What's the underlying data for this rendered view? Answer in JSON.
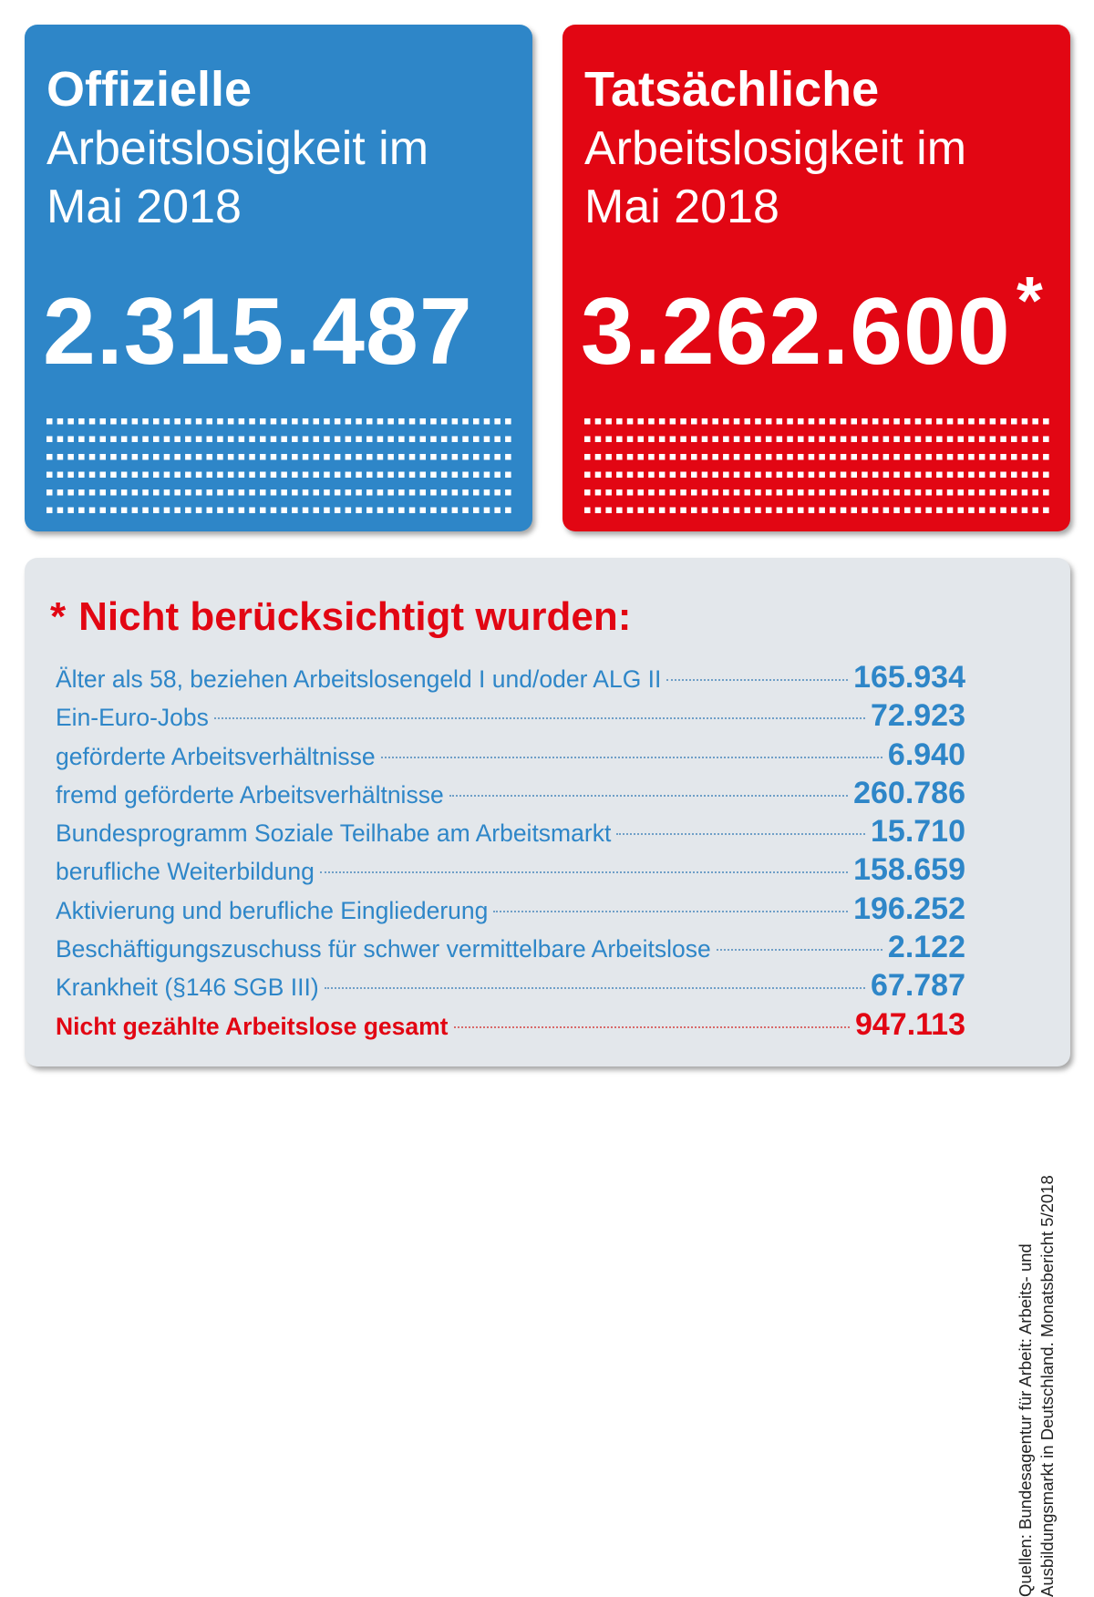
{
  "colors": {
    "blue": "#2e86c8",
    "red": "#e20613",
    "panel": "#e3e7eb"
  },
  "chart_data": {
    "type": "table",
    "official": {
      "heading": "Offizielle",
      "subtitle_line1": "Arbeitslosigkeit im",
      "subtitle_line2": "Mai 2018",
      "value_label": "2.315.487",
      "value": 2315487
    },
    "actual": {
      "heading": "Tatsächliche",
      "subtitle_line1": "Arbeitslosigkeit im",
      "subtitle_line2": "Mai 2018",
      "value_label": "3.262.600",
      "value": 3262600,
      "footnote_mark": "*"
    },
    "excluded": {
      "star": "*",
      "title": "Nicht berücksichtigt wurden:",
      "rows": [
        {
          "label": "Älter als 58, beziehen Arbeitslosengeld I und/oder ALG II",
          "value_label": "165.934",
          "value": 165934
        },
        {
          "label": "Ein-Euro-Jobs",
          "value_label": "72.923",
          "value": 72923
        },
        {
          "label": "geförderte Arbeitsverhältnisse",
          "value_label": "6.940",
          "value": 6940
        },
        {
          "label": "fremd geförderte Arbeitsverhältnisse",
          "value_label": "260.786",
          "value": 260786
        },
        {
          "label": "Bundesprogramm Soziale Teilhabe am Arbeitsmarkt",
          "value_label": "15.710",
          "value": 15710
        },
        {
          "label": "berufliche Weiterbildung",
          "value_label": "158.659",
          "value": 158659
        },
        {
          "label": "Aktivierung und berufliche Eingliederung",
          "value_label": "196.252",
          "value": 196252
        },
        {
          "label": "Beschäftigungszuschuss für schwer vermittelbare Arbeitslose",
          "value_label": "2.122",
          "value": 2122
        },
        {
          "label": "Krankheit (§146 SGB III)",
          "value_label": "67.787",
          "value": 67787
        }
      ],
      "total": {
        "label": "Nicht gezählte Arbeitslose gesamt",
        "value_label": "947.113",
        "value": 947113
      }
    },
    "sources": {
      "line1": "Quellen: Bundesagentur für Arbeit: Arbeits- und",
      "line2": "Ausbildungsmarkt in Deutschland. Monatsbericht 5/2018"
    }
  }
}
